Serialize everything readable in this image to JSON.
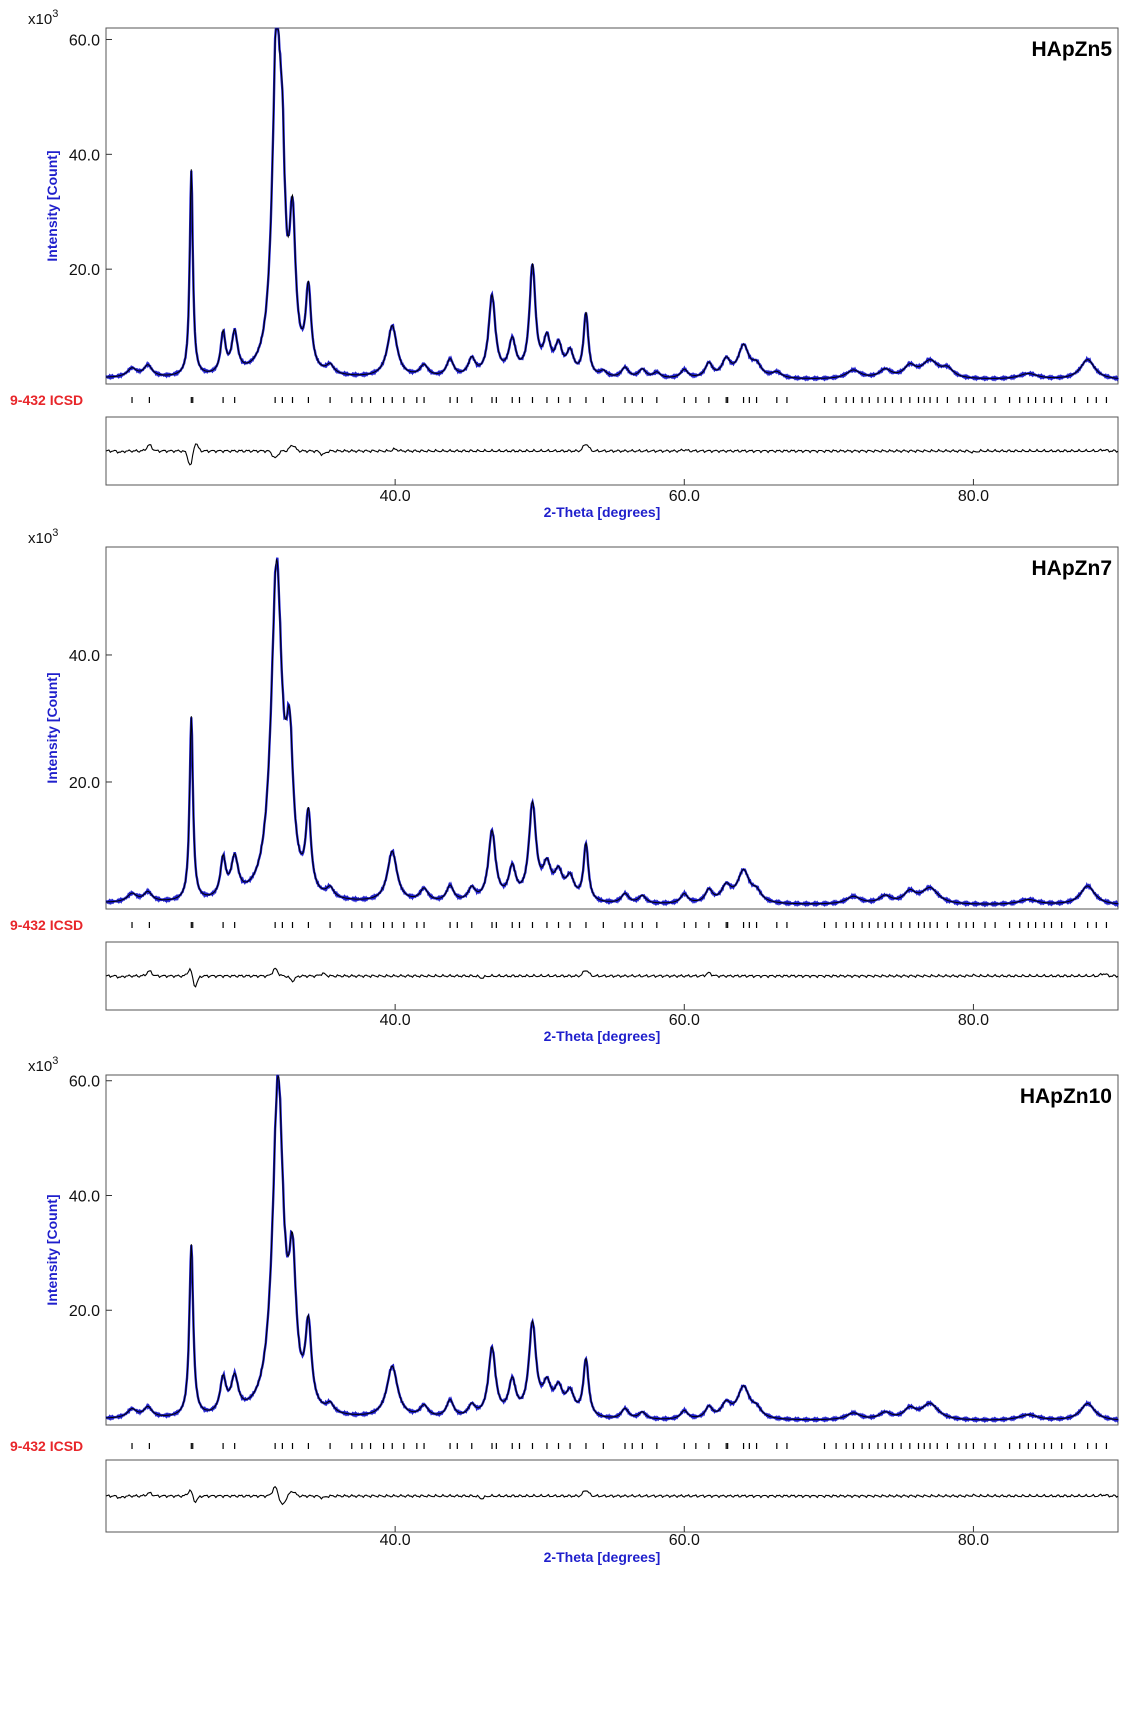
{
  "figure": {
    "colors": {
      "observed": "#1f1fcc",
      "calculated": "#000000",
      "axis_label": "#1f1fcc",
      "ref_label": "#e8262a",
      "frame": "#555555"
    }
  },
  "chart_data": [
    {
      "type": "line",
      "title": "HApZn5",
      "xlabel": "2-Theta [degrees]",
      "ylabel": "Intensity [Count]",
      "y_multiplier": "x10",
      "y_multiplier_exp": "3",
      "xlim": [
        20,
        90
      ],
      "ylim": [
        0,
        62
      ],
      "xticks": [
        "40.0",
        "60.0",
        "80.0"
      ],
      "yticks": [
        "20.0",
        "40.0",
        "60.0"
      ],
      "reference_label": "9-432 ICSD",
      "series": [
        {
          "peaks": [
            [
              21.8,
              1.5,
              0.4
            ],
            [
              22.9,
              2.0,
              0.35
            ],
            [
              25.9,
              36,
              0.13
            ],
            [
              28.1,
              7,
              0.2
            ],
            [
              28.9,
              7,
              0.25
            ],
            [
              31.8,
              58,
              0.35
            ],
            [
              32.2,
              22,
              0.22
            ],
            [
              32.9,
              24,
              0.25
            ],
            [
              34.0,
              14,
              0.22
            ],
            [
              35.5,
              1.5,
              0.3
            ],
            [
              39.8,
              9,
              0.4
            ],
            [
              42.0,
              2,
              0.35
            ],
            [
              43.8,
              3,
              0.3
            ],
            [
              45.3,
              3,
              0.3
            ],
            [
              46.7,
              14,
              0.28
            ],
            [
              48.1,
              6,
              0.3
            ],
            [
              49.5,
              19,
              0.25
            ],
            [
              50.5,
              6,
              0.3
            ],
            [
              51.3,
              5,
              0.3
            ],
            [
              52.1,
              4,
              0.3
            ],
            [
              53.2,
              11,
              0.2
            ],
            [
              54.4,
              1,
              0.3
            ],
            [
              55.9,
              1.8,
              0.3
            ],
            [
              57.1,
              1.5,
              0.3
            ],
            [
              58.1,
              1,
              0.3
            ],
            [
              60.0,
              1.5,
              0.3
            ],
            [
              61.7,
              2.5,
              0.3
            ],
            [
              62.9,
              3,
              0.35
            ],
            [
              64.1,
              5.5,
              0.45
            ],
            [
              65.0,
              2,
              0.4
            ],
            [
              66.4,
              1,
              0.4
            ],
            [
              71.7,
              1.5,
              0.6
            ],
            [
              73.9,
              1.5,
              0.5
            ],
            [
              75.6,
              2,
              0.5
            ],
            [
              77.0,
              3,
              0.7
            ],
            [
              78.2,
              1.5,
              0.5
            ],
            [
              83.8,
              1,
              0.8
            ],
            [
              87.9,
              3.5,
              0.6
            ]
          ],
          "bg": 0.6
        }
      ],
      "ticks": [
        21.8,
        23.0,
        25.9,
        26.0,
        28.1,
        28.9,
        31.7,
        32.2,
        32.9,
        34.0,
        35.5,
        37.0,
        37.7,
        38.3,
        39.2,
        39.8,
        40.6,
        41.5,
        42.0,
        43.8,
        44.3,
        45.3,
        46.7,
        47.0,
        48.1,
        48.6,
        49.5,
        50.5,
        51.3,
        52.1,
        53.2,
        54.4,
        55.9,
        56.4,
        57.1,
        58.1,
        60.0,
        60.8,
        61.7,
        62.9,
        63.0,
        64.1,
        64.5,
        65.0,
        66.4,
        67.1,
        69.7,
        70.5,
        71.2,
        71.7,
        72.3,
        72.8,
        73.4,
        73.9,
        74.4,
        75.0,
        75.6,
        76.2,
        76.6,
        77.0,
        77.5,
        78.2,
        79.0,
        79.5,
        80.0,
        80.8,
        81.5,
        82.5,
        83.2,
        83.8,
        84.3,
        84.9,
        85.4,
        86.1,
        87.0,
        87.9,
        88.5,
        89.2
      ],
      "difference": [
        [
          21.0,
          -0.2
        ],
        [
          23.0,
          1.0
        ],
        [
          25.9,
          -3.5
        ],
        [
          26.1,
          2.5
        ],
        [
          31.7,
          -1.2
        ],
        [
          32.9,
          1.0
        ],
        [
          35.0,
          -0.6
        ],
        [
          40.0,
          0.3
        ],
        [
          53.2,
          1.2
        ],
        [
          60.0,
          0.2
        ],
        [
          80.0,
          -0.2
        ],
        [
          89.0,
          0.2
        ]
      ]
    },
    {
      "type": "line",
      "title": "HApZn7",
      "xlabel": "2-Theta [degrees]",
      "ylabel": "Intensity [Count]",
      "y_multiplier": "x10",
      "y_multiplier_exp": "3",
      "xlim": [
        20,
        90
      ],
      "ylim": [
        0,
        57
      ],
      "xticks": [
        "40.0",
        "60.0",
        "80.0"
      ],
      "yticks": [
        "20.0",
        "40.0"
      ],
      "reference_label": "9-432 ICSD",
      "series": [
        {
          "peaks": [
            [
              21.8,
              1.3,
              0.4
            ],
            [
              22.9,
              1.5,
              0.35
            ],
            [
              25.9,
              29,
              0.14
            ],
            [
              28.1,
              6,
              0.22
            ],
            [
              28.9,
              6,
              0.3
            ],
            [
              31.8,
              52,
              0.45
            ],
            [
              32.7,
              20,
              0.3
            ],
            [
              34.0,
              12,
              0.22
            ],
            [
              35.5,
              1.5,
              0.3
            ],
            [
              39.8,
              8,
              0.4
            ],
            [
              42.0,
              2,
              0.35
            ],
            [
              43.8,
              2.5,
              0.3
            ],
            [
              45.3,
              2,
              0.3
            ],
            [
              46.7,
              11,
              0.3
            ],
            [
              48.1,
              5,
              0.3
            ],
            [
              49.5,
              15,
              0.3
            ],
            [
              50.5,
              5,
              0.35
            ],
            [
              51.3,
              4,
              0.35
            ],
            [
              52.1,
              3.5,
              0.35
            ],
            [
              53.2,
              9,
              0.2
            ],
            [
              55.9,
              1.5,
              0.3
            ],
            [
              57.1,
              1.2,
              0.3
            ],
            [
              60.0,
              1.5,
              0.3
            ],
            [
              61.7,
              2,
              0.3
            ],
            [
              62.9,
              2.5,
              0.4
            ],
            [
              64.1,
              5,
              0.5
            ],
            [
              65.0,
              1.5,
              0.4
            ],
            [
              71.7,
              1.2,
              0.6
            ],
            [
              73.9,
              1.2,
              0.5
            ],
            [
              75.6,
              1.8,
              0.5
            ],
            [
              77.0,
              2.5,
              0.7
            ],
            [
              83.8,
              0.8,
              0.8
            ],
            [
              87.9,
              3,
              0.6
            ]
          ],
          "bg": 0.5
        }
      ],
      "ticks": [
        21.8,
        23.0,
        25.9,
        26.0,
        28.1,
        28.9,
        31.7,
        32.2,
        32.9,
        34.0,
        35.5,
        37.0,
        37.7,
        38.3,
        39.2,
        39.8,
        40.6,
        41.5,
        42.0,
        43.8,
        44.3,
        45.3,
        46.7,
        47.0,
        48.1,
        48.6,
        49.5,
        50.5,
        51.3,
        52.1,
        53.2,
        54.4,
        55.9,
        56.4,
        57.1,
        58.1,
        60.0,
        60.8,
        61.7,
        62.9,
        63.0,
        64.1,
        64.5,
        65.0,
        66.4,
        67.1,
        69.7,
        70.5,
        71.2,
        71.7,
        72.3,
        72.8,
        73.4,
        73.9,
        74.4,
        75.0,
        75.6,
        76.2,
        76.6,
        77.0,
        77.5,
        78.2,
        79.0,
        79.5,
        80.0,
        80.8,
        81.5,
        82.5,
        83.2,
        83.8,
        84.3,
        84.9,
        85.4,
        86.1,
        87.0,
        87.9,
        88.5,
        89.2
      ],
      "difference": [
        [
          21.0,
          -0.2
        ],
        [
          23.0,
          0.8
        ],
        [
          25.9,
          2.0
        ],
        [
          26.1,
          -2.5
        ],
        [
          31.7,
          1.2
        ],
        [
          32.9,
          -0.8
        ],
        [
          35.0,
          0.4
        ],
        [
          46.0,
          -0.3
        ],
        [
          53.2,
          1.0
        ],
        [
          61.7,
          0.5
        ],
        [
          80.0,
          0.1
        ],
        [
          89.0,
          0.4
        ]
      ]
    },
    {
      "type": "line",
      "title": "HApZn10",
      "xlabel": "2-Theta [degrees]",
      "ylabel": "Intensity [Count]",
      "y_multiplier": "x10",
      "y_multiplier_exp": "3",
      "xlim": [
        20,
        90
      ],
      "ylim": [
        0,
        61
      ],
      "xticks": [
        "40.0",
        "60.0",
        "80.0"
      ],
      "yticks": [
        "20.0",
        "40.0",
        "60.0"
      ],
      "reference_label": "9-432 ICSD",
      "series": [
        {
          "peaks": [
            [
              21.8,
              1.5,
              0.4
            ],
            [
              22.9,
              1.8,
              0.35
            ],
            [
              25.9,
              30,
              0.16
            ],
            [
              28.1,
              6,
              0.25
            ],
            [
              28.9,
              6,
              0.3
            ],
            [
              31.9,
              58,
              0.45
            ],
            [
              32.9,
              22,
              0.3
            ],
            [
              34.0,
              14,
              0.25
            ],
            [
              35.5,
              1.5,
              0.3
            ],
            [
              39.8,
              9,
              0.45
            ],
            [
              42.0,
              2,
              0.35
            ],
            [
              43.8,
              3,
              0.3
            ],
            [
              45.3,
              2,
              0.3
            ],
            [
              46.7,
              12,
              0.3
            ],
            [
              48.1,
              6,
              0.3
            ],
            [
              49.5,
              16,
              0.3
            ],
            [
              50.5,
              5,
              0.35
            ],
            [
              51.3,
              4.5,
              0.35
            ],
            [
              52.1,
              4,
              0.35
            ],
            [
              53.2,
              10,
              0.22
            ],
            [
              55.9,
              1.8,
              0.3
            ],
            [
              57.1,
              1.2,
              0.3
            ],
            [
              60.0,
              1.5,
              0.3
            ],
            [
              61.7,
              2,
              0.3
            ],
            [
              62.9,
              2.5,
              0.4
            ],
            [
              64.1,
              5.5,
              0.5
            ],
            [
              65.0,
              1.5,
              0.4
            ],
            [
              71.7,
              1.2,
              0.6
            ],
            [
              73.9,
              1.2,
              0.5
            ],
            [
              75.6,
              1.8,
              0.5
            ],
            [
              77.0,
              2.8,
              0.7
            ],
            [
              83.8,
              1.0,
              0.8
            ],
            [
              87.9,
              3,
              0.6
            ]
          ],
          "bg": 0.6
        }
      ],
      "ticks": [
        21.8,
        23.0,
        25.9,
        26.0,
        28.1,
        28.9,
        31.7,
        32.2,
        32.9,
        34.0,
        35.5,
        37.0,
        37.7,
        38.3,
        39.2,
        39.8,
        40.6,
        41.5,
        42.0,
        43.8,
        44.3,
        45.3,
        46.7,
        47.0,
        48.1,
        48.6,
        49.5,
        50.5,
        51.3,
        52.1,
        53.2,
        54.4,
        55.9,
        56.4,
        57.1,
        58.1,
        60.0,
        60.8,
        61.7,
        62.9,
        63.0,
        64.1,
        64.5,
        65.0,
        66.4,
        67.1,
        69.7,
        70.5,
        71.2,
        71.7,
        72.3,
        72.8,
        73.4,
        73.9,
        74.4,
        75.0,
        75.6,
        76.2,
        76.6,
        77.0,
        77.5,
        78.2,
        79.0,
        79.5,
        80.0,
        80.8,
        81.5,
        82.5,
        83.2,
        83.8,
        84.3,
        84.9,
        85.4,
        86.1,
        87.0,
        87.9,
        88.5,
        89.2
      ],
      "difference": [
        [
          21.0,
          -0.3
        ],
        [
          23.0,
          0.5
        ],
        [
          25.9,
          1.5
        ],
        [
          26.1,
          -1.5
        ],
        [
          31.7,
          1.5
        ],
        [
          32.2,
          -1.5
        ],
        [
          32.9,
          0.8
        ],
        [
          35.0,
          -0.3
        ],
        [
          46.0,
          -0.4
        ],
        [
          53.2,
          1.0
        ],
        [
          80.0,
          0.1
        ],
        [
          89.0,
          0.2
        ]
      ]
    }
  ]
}
